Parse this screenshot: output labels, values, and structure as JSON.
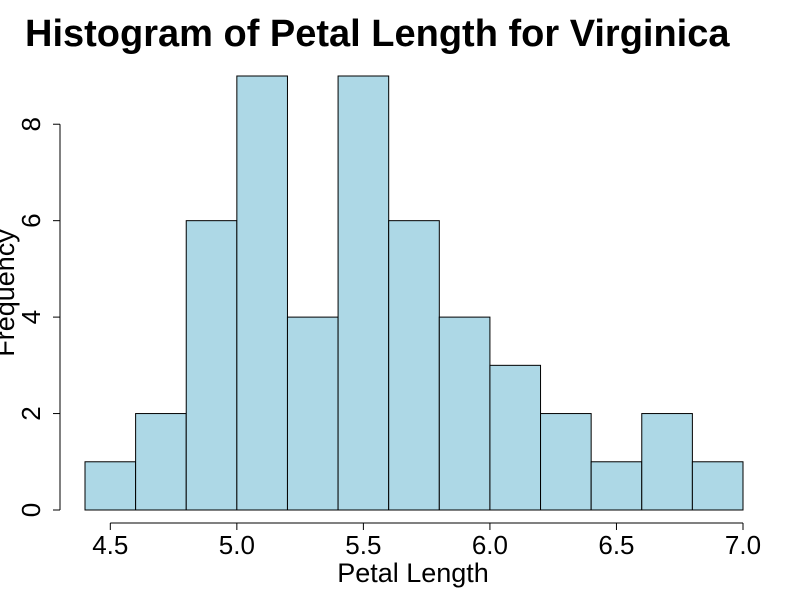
{
  "chart_data": {
    "type": "bar",
    "title": "Histogram of Petal Length for Virginica",
    "xlabel": "Petal Length",
    "ylabel": "Frequency",
    "bin_edges": [
      4.4,
      4.6,
      4.8,
      5.0,
      5.2,
      5.4,
      5.6,
      5.8,
      6.0,
      6.2,
      6.4,
      6.6,
      6.8,
      7.0
    ],
    "values": [
      1,
      2,
      6,
      9,
      4,
      9,
      6,
      4,
      3,
      2,
      1,
      2,
      1
    ],
    "xlim": [
      4.4,
      7.0
    ],
    "ylim": [
      0,
      9
    ],
    "x_ticks": [
      4.5,
      5.0,
      5.5,
      6.0,
      6.5,
      7.0
    ],
    "x_tick_labels": [
      "4.5",
      "5.0",
      "5.5",
      "6.0",
      "6.5",
      "7.0"
    ],
    "y_ticks": [
      0,
      2,
      4,
      6,
      8
    ],
    "y_tick_labels": [
      "0",
      "2",
      "4",
      "6",
      "8"
    ],
    "grid": false,
    "bar_color": "#add8e6",
    "edge_color": "#000000"
  }
}
